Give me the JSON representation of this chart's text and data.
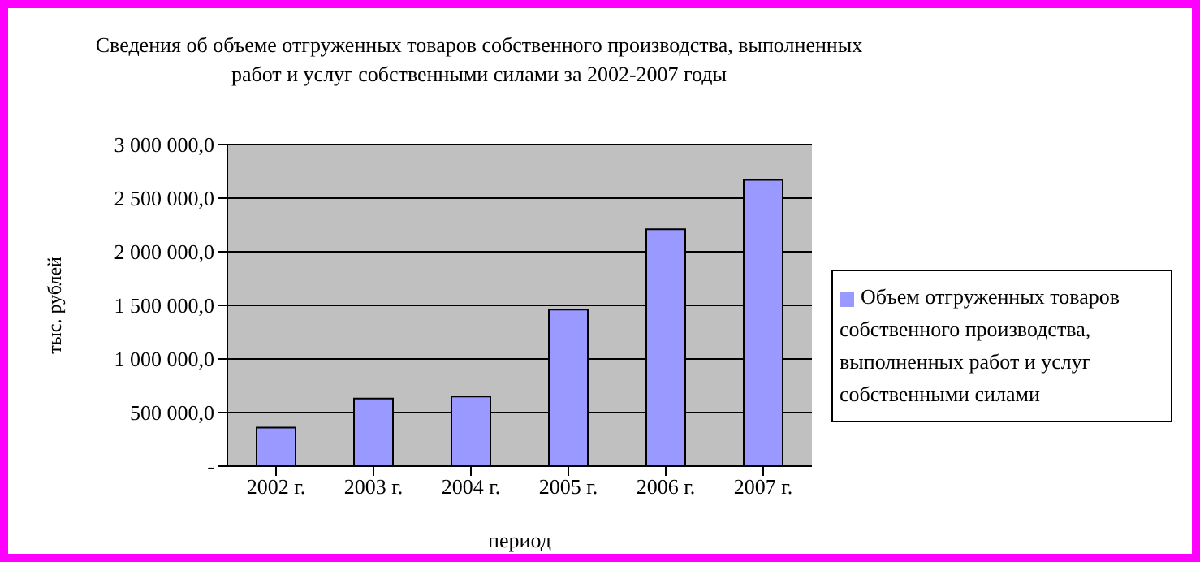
{
  "chart_data": {
    "type": "bar",
    "title": "Сведения об объеме отгруженных товаров собственного производства, выполненных работ и услуг собственными силами за 2002-2007 годы",
    "xlabel": "период",
    "ylabel": "тыс. рублей",
    "categories": [
      "2002 г.",
      "2003 г.",
      "2004 г.",
      "2005 г.",
      "2006 г.",
      "2007 г."
    ],
    "series": [
      {
        "name": "Объем отгруженных товаров собственного производства, выполненных работ и услуг собственными силами",
        "color": "#9999ff",
        "values": [
          360000,
          630000,
          650000,
          1460000,
          2210000,
          2670000
        ]
      }
    ],
    "ylim": [
      0,
      3000000
    ],
    "yticks": [
      {
        "value": 0,
        "label": "-"
      },
      {
        "value": 500000,
        "label": "500 000,0"
      },
      {
        "value": 1000000,
        "label": "1 000 000,0"
      },
      {
        "value": 1500000,
        "label": "1 500 000,0"
      },
      {
        "value": 2000000,
        "label": "2 000 000,0"
      },
      {
        "value": 2500000,
        "label": "2 500 000,0"
      },
      {
        "value": 3000000,
        "label": "3 000 000,0"
      }
    ],
    "grid": "y",
    "legend": "right"
  }
}
